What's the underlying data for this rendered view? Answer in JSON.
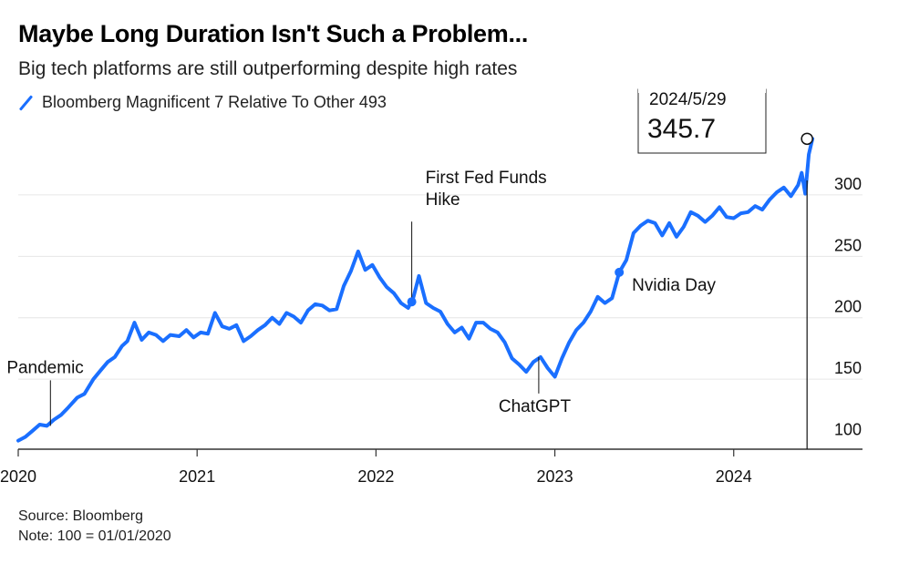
{
  "chart_data": {
    "type": "line",
    "title": "Maybe Long Duration Isn't Such a Problem...",
    "subtitle": "Big tech platforms are still outperforming despite high rates",
    "series": [
      {
        "name": "Bloomberg Magnificent 7 Relative To Other 493",
        "color": "#1a6fff",
        "points": [
          [
            2020.0,
            100
          ],
          [
            2020.04,
            103
          ],
          [
            2020.08,
            108
          ],
          [
            2020.12,
            113
          ],
          [
            2020.16,
            112
          ],
          [
            2020.2,
            117
          ],
          [
            2020.24,
            121
          ],
          [
            2020.28,
            127
          ],
          [
            2020.33,
            135
          ],
          [
            2020.37,
            138
          ],
          [
            2020.42,
            150
          ],
          [
            2020.46,
            157
          ],
          [
            2020.5,
            164
          ],
          [
            2020.54,
            168
          ],
          [
            2020.58,
            177
          ],
          [
            2020.61,
            181
          ],
          [
            2020.65,
            196
          ],
          [
            2020.69,
            182
          ],
          [
            2020.73,
            188
          ],
          [
            2020.77,
            186
          ],
          [
            2020.81,
            181
          ],
          [
            2020.85,
            186
          ],
          [
            2020.9,
            185
          ],
          [
            2020.94,
            190
          ],
          [
            2020.98,
            184
          ],
          [
            2021.02,
            188
          ],
          [
            2021.06,
            187
          ],
          [
            2021.1,
            204
          ],
          [
            2021.14,
            193
          ],
          [
            2021.18,
            191
          ],
          [
            2021.22,
            194
          ],
          [
            2021.26,
            181
          ],
          [
            2021.3,
            185
          ],
          [
            2021.34,
            190
          ],
          [
            2021.38,
            194
          ],
          [
            2021.42,
            200
          ],
          [
            2021.46,
            195
          ],
          [
            2021.5,
            204
          ],
          [
            2021.54,
            201
          ],
          [
            2021.58,
            196
          ],
          [
            2021.62,
            206
          ],
          [
            2021.66,
            211
          ],
          [
            2021.7,
            210
          ],
          [
            2021.74,
            206
          ],
          [
            2021.78,
            207
          ],
          [
            2021.82,
            226
          ],
          [
            2021.86,
            238
          ],
          [
            2021.9,
            254
          ],
          [
            2021.94,
            239
          ],
          [
            2021.98,
            243
          ],
          [
            2022.02,
            233
          ],
          [
            2022.06,
            225
          ],
          [
            2022.1,
            220
          ],
          [
            2022.14,
            212
          ],
          [
            2022.18,
            208
          ],
          [
            2022.21,
            217
          ],
          [
            2022.24,
            234
          ],
          [
            2022.28,
            212
          ],
          [
            2022.32,
            208
          ],
          [
            2022.36,
            205
          ],
          [
            2022.4,
            195
          ],
          [
            2022.44,
            188
          ],
          [
            2022.48,
            192
          ],
          [
            2022.52,
            183
          ],
          [
            2022.56,
            196
          ],
          [
            2022.6,
            196
          ],
          [
            2022.64,
            191
          ],
          [
            2022.68,
            188
          ],
          [
            2022.72,
            180
          ],
          [
            2022.76,
            167
          ],
          [
            2022.8,
            162
          ],
          [
            2022.84,
            156
          ],
          [
            2022.88,
            164
          ],
          [
            2022.92,
            168
          ],
          [
            2022.96,
            159
          ],
          [
            2023.0,
            152
          ],
          [
            2023.04,
            167
          ],
          [
            2023.08,
            180
          ],
          [
            2023.12,
            190
          ],
          [
            2023.16,
            196
          ],
          [
            2023.2,
            205
          ],
          [
            2023.24,
            217
          ],
          [
            2023.28,
            212
          ],
          [
            2023.32,
            216
          ],
          [
            2023.36,
            237
          ],
          [
            2023.4,
            247
          ],
          [
            2023.44,
            269
          ],
          [
            2023.48,
            275
          ],
          [
            2023.52,
            279
          ],
          [
            2023.56,
            277
          ],
          [
            2023.6,
            267
          ],
          [
            2023.64,
            277
          ],
          [
            2023.68,
            266
          ],
          [
            2023.72,
            274
          ],
          [
            2023.76,
            286
          ],
          [
            2023.8,
            283
          ],
          [
            2023.84,
            278
          ],
          [
            2023.88,
            283
          ],
          [
            2023.92,
            290
          ],
          [
            2023.96,
            282
          ],
          [
            2024.0,
            281
          ],
          [
            2024.04,
            285
          ],
          [
            2024.08,
            286
          ],
          [
            2024.12,
            291
          ],
          [
            2024.16,
            288
          ],
          [
            2024.2,
            296
          ],
          [
            2024.24,
            302
          ],
          [
            2024.28,
            306
          ],
          [
            2024.32,
            299
          ],
          [
            2024.36,
            308
          ],
          [
            2024.38,
            318
          ],
          [
            2024.4,
            301
          ],
          [
            2024.42,
            333
          ],
          [
            2024.44,
            345.7
          ]
        ]
      }
    ],
    "x_ticks": [
      "2020",
      "2021",
      "2022",
      "2023",
      "2024"
    ],
    "x_tick_values": [
      2020,
      2021,
      2022,
      2023,
      2024
    ],
    "y_ticks": [
      "100",
      "150",
      "200",
      "250",
      "300"
    ],
    "y_tick_values": [
      100,
      150,
      200,
      250,
      300
    ],
    "xlim": [
      2020,
      2024.72
    ],
    "ylim": [
      93,
      340
    ],
    "grid": true,
    "annotations": [
      {
        "label": "Pandemic",
        "x": 2020.18,
        "y": 112
      },
      {
        "label": "First Fed Funds Hike",
        "x": 2022.2,
        "y": 213
      },
      {
        "label": "ChatGPT",
        "x": 2022.91,
        "y": 168
      },
      {
        "label": "Nvidia Day",
        "x": 2023.36,
        "y": 237
      }
    ],
    "callout": {
      "date": "2024/5/29",
      "value": "345.7",
      "x": 2024.41,
      "y": 345.7
    }
  },
  "footer": {
    "source": "Source: Bloomberg",
    "note": "Note: 100 = 01/01/2020"
  }
}
